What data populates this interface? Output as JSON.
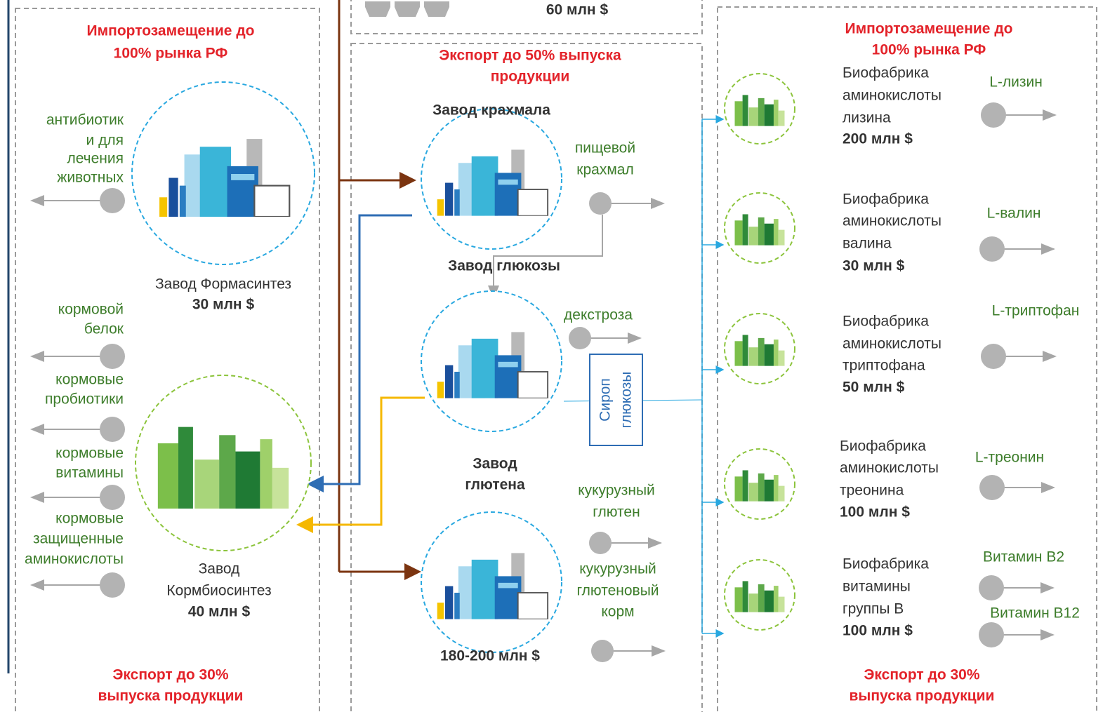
{
  "top_box": {
    "value": "60 млн $"
  },
  "left": {
    "header": [
      "Импортозамещение до",
      "100% рынка РФ"
    ],
    "products": [
      [
        "антибиотик",
        "и для",
        "лечения",
        "животных"
      ],
      [
        "кормовой",
        "белок"
      ],
      [
        "кормовые",
        "пробиотики"
      ],
      [
        "кормовые",
        "витамины"
      ],
      [
        "кормовые",
        "защищенные",
        "аминокислоты"
      ]
    ],
    "plants": [
      {
        "name": [
          "Завод Формасинтез"
        ],
        "cost": "30 млн $"
      },
      {
        "name": [
          "Завод",
          "Кормбиосинтез"
        ],
        "cost": "40 млн $"
      }
    ],
    "footer": [
      "Экспорт до 30%",
      "выпуска продукции"
    ]
  },
  "middle": {
    "header": [
      "Экспорт до 50% выпуска",
      "продукции"
    ],
    "plants": [
      {
        "name": [
          "Завод крахмала"
        ]
      },
      {
        "name": [
          "Завод глюкозы"
        ]
      },
      {
        "name": [
          "Завод",
          "глютена"
        ],
        "cost": "180-200 млн $"
      }
    ],
    "products": [
      [
        "пищевой",
        "крахмал"
      ],
      [
        "декстроза"
      ],
      [
        "кукурузный",
        "глютен"
      ],
      [
        "кукурузный",
        "глютеновый",
        "корм"
      ]
    ],
    "syrup": [
      "Сироп",
      "глюкозы"
    ]
  },
  "right": {
    "header": [
      "Импортозамещение до",
      "100% рынка РФ"
    ],
    "factories": [
      {
        "name": [
          "Биофабрика",
          "аминокислоты",
          "лизина"
        ],
        "cost": "200 млн $",
        "products": [
          "L-лизин"
        ]
      },
      {
        "name": [
          "Биофабрика",
          "аминокислоты",
          "валина"
        ],
        "cost": "30 млн $",
        "products": [
          "L-валин"
        ]
      },
      {
        "name": [
          "Биофабрика",
          "аминокислоты",
          "триптофана"
        ],
        "cost": "50 млн $",
        "products": [
          "L-триптофан"
        ]
      },
      {
        "name": [
          "Биофабрика",
          "аминокислоты",
          "треонина"
        ],
        "cost": "100 млн $",
        "products": [
          "L-треонин"
        ]
      },
      {
        "name": [
          "Биофабрика",
          "витамины",
          "группы В"
        ],
        "cost": "100 млн $",
        "products": [
          "Витамин В2",
          "Витамин В12"
        ]
      }
    ],
    "footer": [
      "Экспорт до 30%",
      "выпуска продукции"
    ]
  }
}
